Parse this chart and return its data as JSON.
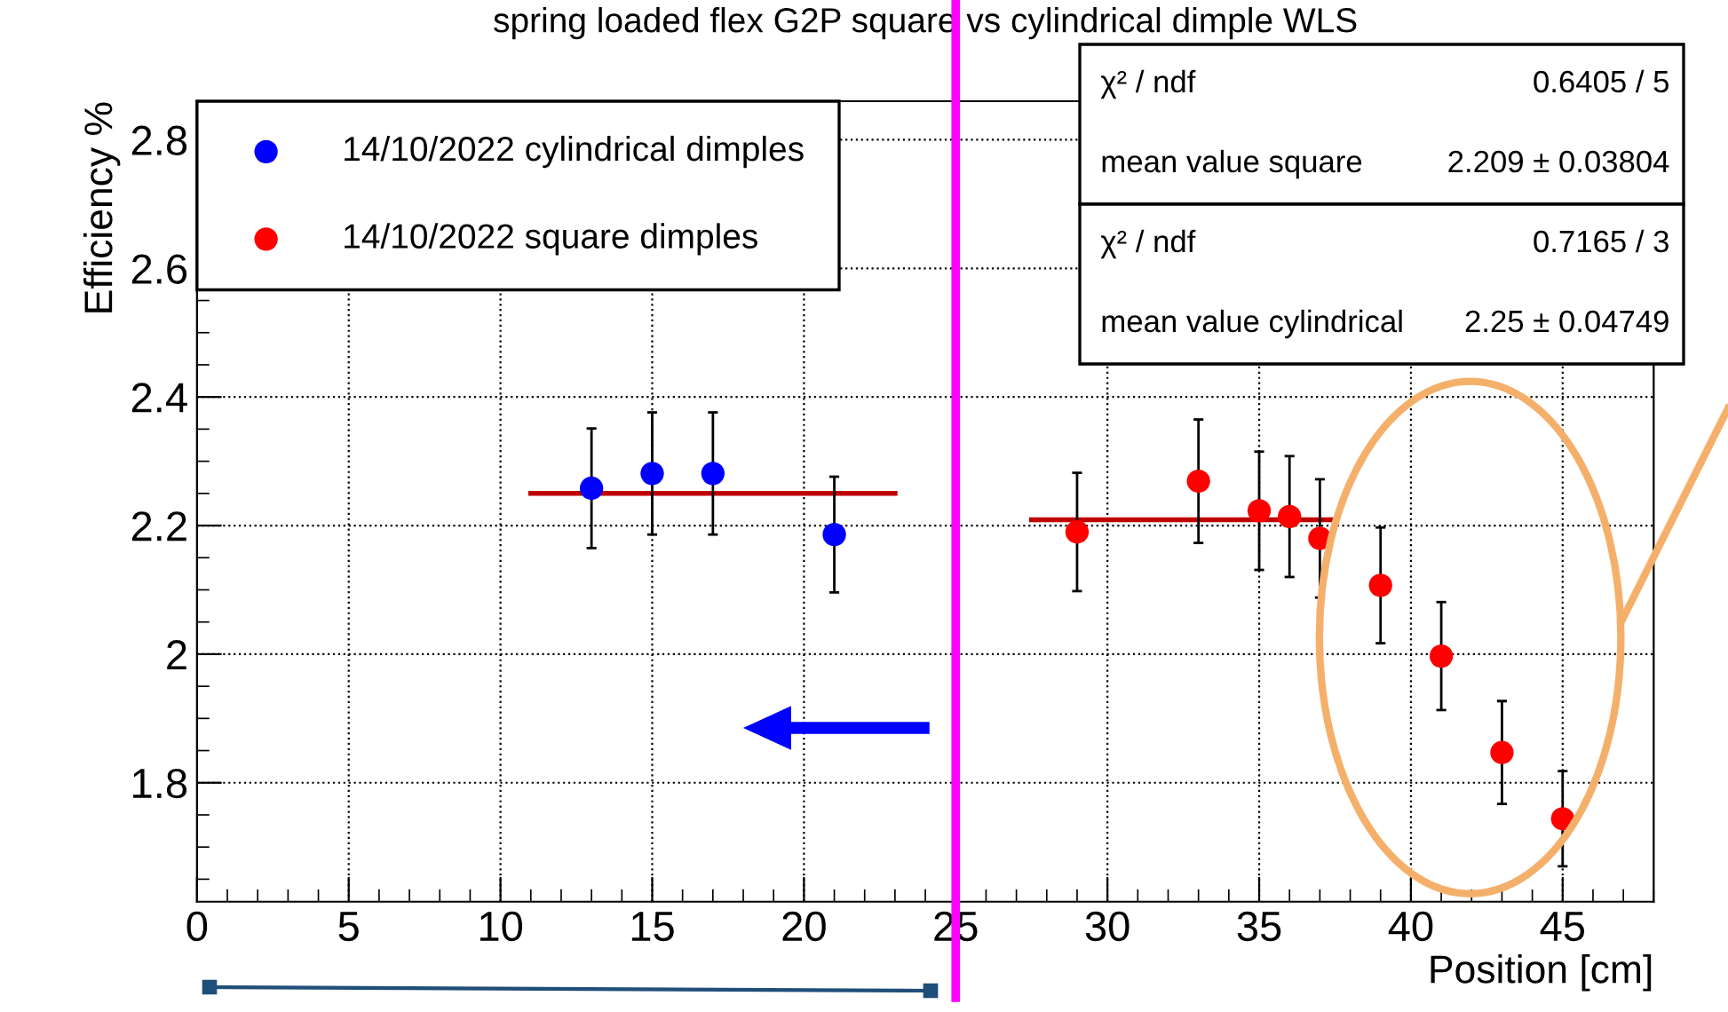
{
  "chart_data": {
    "type": "scatter",
    "title": "spring loaded flex G2P square vs cylindrical dimple WLS",
    "xlabel": "Position [cm]",
    "ylabel": "Efficiency %",
    "xlim": [
      0,
      48
    ],
    "ylim": [
      1.615,
      2.86
    ],
    "xticks": [
      0,
      5,
      10,
      15,
      20,
      25,
      30,
      35,
      40,
      45
    ],
    "yticks": [
      1.8,
      2,
      2.2,
      2.4,
      2.6,
      2.8
    ],
    "grid": true,
    "legend": "top left",
    "marker": "circle",
    "series": [
      {
        "name": "14/10/2022 cylindrical dimples",
        "color": "#0000ff",
        "x": [
          13,
          15,
          17,
          21
        ],
        "values": [
          2.258,
          2.281,
          2.281,
          2.186
        ],
        "errors": [
          0.093,
          0.095,
          0.095,
          0.09
        ]
      },
      {
        "name": "14/10/2022 square dimples",
        "color": "#ff0000",
        "x": [
          29,
          33,
          35,
          36,
          37,
          39,
          41,
          43,
          45
        ],
        "values": [
          2.19,
          2.269,
          2.223,
          2.214,
          2.18,
          2.107,
          1.997,
          1.847,
          1.744
        ],
        "errors": [
          0.092,
          0.096,
          0.092,
          0.094,
          0.092,
          0.09,
          0.084,
          0.08,
          0.074
        ]
      },
      {
        "type": "line",
        "color": "#c00000",
        "x": [
          11,
          23
        ],
        "values": [
          2.25,
          2.25
        ],
        "marker": "none"
      },
      {
        "type": "line",
        "color": "#c00000",
        "x": [
          27.5,
          37.5
        ],
        "values": [
          2.209,
          2.209
        ],
        "marker": "none"
      }
    ],
    "ref_lines": [
      {
        "axis": "x",
        "value": 25,
        "label": null,
        "color": "#ff00ff"
      }
    ],
    "annotations": [
      "χ² / ndf",
      "0.6405 / 5",
      "mean value square",
      "2.209 ± 0.03804",
      "χ² / ndf",
      "0.7165 / 3",
      "mean value cylindrical",
      "2.25 ± 0.04749"
    ]
  }
}
